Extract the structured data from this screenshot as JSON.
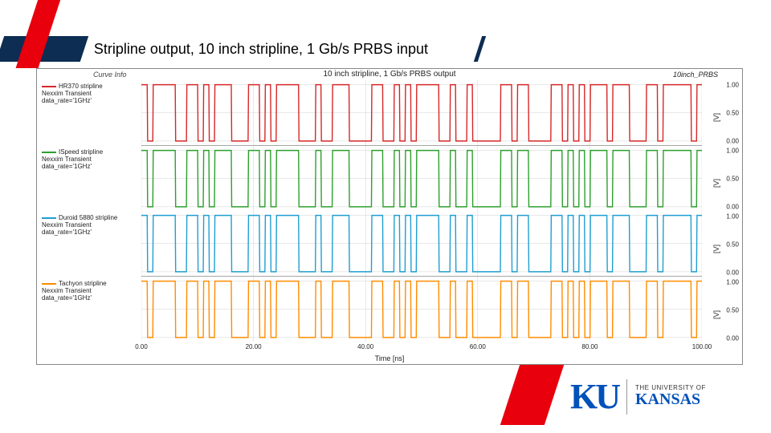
{
  "slide": {
    "title": "Stripline output, 10 inch stripline, 1 Gb/s PRBS input",
    "accent_red": "#e8000d",
    "title_bar_blue": "#0d2d52"
  },
  "chart": {
    "title": "10 inch stripline, 1 Gb/s PRBS output",
    "curve_info_label": "Curve Info",
    "right_label": "10inch_PRBS",
    "x_axis_label": "Time [ns]",
    "xlim": [
      0,
      100
    ],
    "xticks": [
      0,
      20,
      40,
      60,
      80,
      100
    ],
    "xtick_labels": [
      "0.00",
      "20.00",
      "40.00",
      "60.00",
      "80.00",
      "100.00"
    ],
    "grid_color": "#d0d0d0",
    "background": "#ffffff",
    "panels": [
      {
        "legend_name": "HR370 stripline",
        "legend_sub1": "Nexxim Transient",
        "legend_sub2": "data_rate='1GHz'",
        "color": "#d62728",
        "ylabel": "[V]",
        "yticks": [
          0.0,
          0.5,
          1.0
        ],
        "ytick_labels": [
          "0.00",
          "0.50",
          "1.00"
        ]
      },
      {
        "legend_name": "ISpeed stripline",
        "legend_sub1": "Nexxim Transient",
        "legend_sub2": "data_rate='1GHz'",
        "color": "#2ca02c",
        "ylabel": "[V]",
        "yticks": [
          0.0,
          0.5,
          1.0
        ],
        "ytick_labels": [
          "0.00",
          "0.50",
          "1.00"
        ]
      },
      {
        "legend_name": "Duroid 5880 stripline",
        "legend_sub1": "Nexxim Transient",
        "legend_sub2": "data_rate='1GHz'",
        "color": "#1f9ed1",
        "ylabel": "[V]",
        "yticks": [
          0.0,
          0.5,
          1.0
        ],
        "ytick_labels": [
          "0.00",
          "0.50",
          "1.00"
        ]
      },
      {
        "legend_name": "Tachyon stripline",
        "legend_sub1": "Nexxim Transient",
        "legend_sub2": "data_rate='1GHz'",
        "color": "#ff8c00",
        "ylabel": "[V]",
        "yticks": [
          0.0,
          0.5,
          1.0
        ],
        "ytick_labels": [
          "0.00",
          "0.50",
          "1.00"
        ]
      }
    ],
    "prbs_bits": [
      1,
      0,
      1,
      1,
      1,
      1,
      0,
      0,
      1,
      1,
      0,
      1,
      0,
      1,
      1,
      1,
      0,
      0,
      0,
      1,
      1,
      0,
      1,
      0,
      1,
      1,
      1,
      1,
      0,
      0,
      0,
      1,
      0,
      0,
      1,
      1,
      1,
      0,
      0,
      0,
      0,
      1,
      1,
      0,
      0,
      1,
      0,
      1,
      0,
      1,
      1,
      1,
      1,
      0,
      0,
      1,
      0,
      0,
      1,
      0,
      0,
      0,
      0,
      0,
      1,
      1,
      0,
      1,
      1,
      0,
      0,
      0,
      0,
      1,
      1,
      0,
      1,
      0,
      1,
      0,
      1,
      1,
      1,
      0,
      1,
      1,
      1,
      0,
      0,
      0,
      1,
      1,
      0,
      1,
      1,
      1,
      1,
      1,
      0,
      1
    ],
    "bit_period_ns": 1.0,
    "line_width": 1.4,
    "ylim": [
      -0.08,
      1.08
    ]
  },
  "brand": {
    "institution_small": "THE UNIVERSITY OF",
    "institution_big": "KANSAS",
    "mark": "KU",
    "blue": "#0051ba"
  }
}
